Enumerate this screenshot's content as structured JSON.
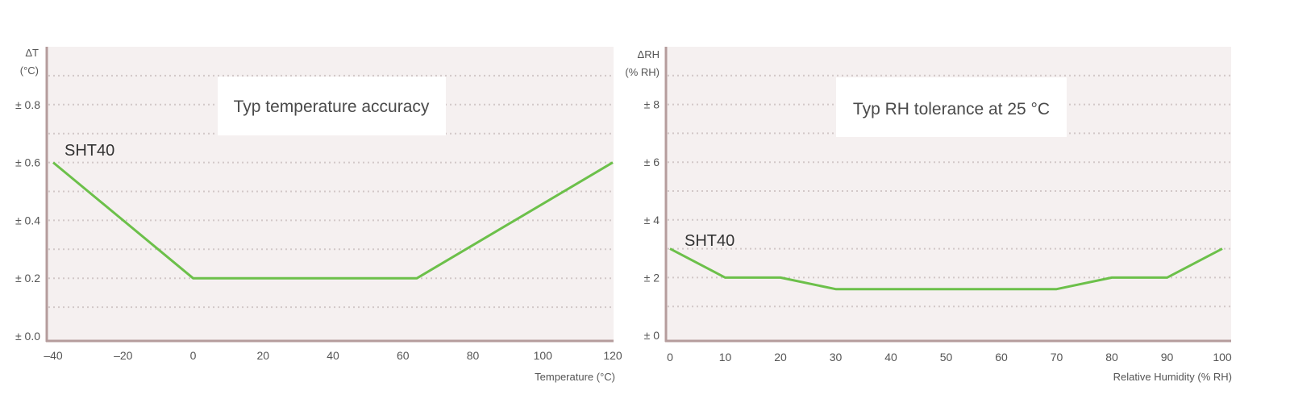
{
  "chart_data": [
    {
      "type": "line",
      "title": "Typ temperature accuracy",
      "xlabel": "Temperature (°C)",
      "ylabel_line1": "ΔT",
      "ylabel_line2": "(°C)",
      "xlim": [
        -40,
        120
      ],
      "ylim": [
        0,
        1
      ],
      "xticks": [
        -40,
        -20,
        0,
        20,
        40,
        60,
        80,
        100,
        120
      ],
      "xtick_labels": [
        "–40",
        "–20",
        "0",
        "20",
        "40",
        "60",
        "80",
        "100",
        "120"
      ],
      "yticks": [
        0,
        0.2,
        0.4,
        0.6,
        0.8
      ],
      "ytick_labels": [
        "± 0.0",
        "± 0.2",
        "± 0.4",
        "± 0.6",
        "± 0.8"
      ],
      "grid": true,
      "series_label": "SHT40",
      "series": [
        {
          "name": "SHT40",
          "color": "#6cc04a",
          "x": [
            -40,
            0,
            64,
            120
          ],
          "y": [
            0.6,
            0.2,
            0.2,
            0.6
          ]
        }
      ]
    },
    {
      "type": "line",
      "title": "Typ RH tolerance at 25 °C",
      "xlabel": "Relative Humidity (% RH)",
      "ylabel_line1": "ΔRH",
      "ylabel_line2": "(% RH)",
      "xlim": [
        0,
        100
      ],
      "ylim": [
        0,
        10
      ],
      "xticks": [
        0,
        10,
        20,
        30,
        40,
        50,
        60,
        70,
        80,
        90,
        100
      ],
      "xtick_labels": [
        "0",
        "10",
        "20",
        "30",
        "40",
        "50",
        "60",
        "70",
        "80",
        "90",
        "100"
      ],
      "yticks": [
        0,
        2,
        4,
        6,
        8
      ],
      "ytick_labels": [
        "± 0",
        "± 2",
        "± 4",
        "± 6",
        "± 8"
      ],
      "grid": true,
      "series_label": "SHT40",
      "series": [
        {
          "name": "SHT40",
          "color": "#6cc04a",
          "x": [
            0,
            10,
            20,
            30,
            70,
            80,
            90,
            100
          ],
          "y": [
            3,
            2,
            2,
            1.6,
            1.6,
            2,
            2,
            3
          ]
        }
      ]
    }
  ]
}
